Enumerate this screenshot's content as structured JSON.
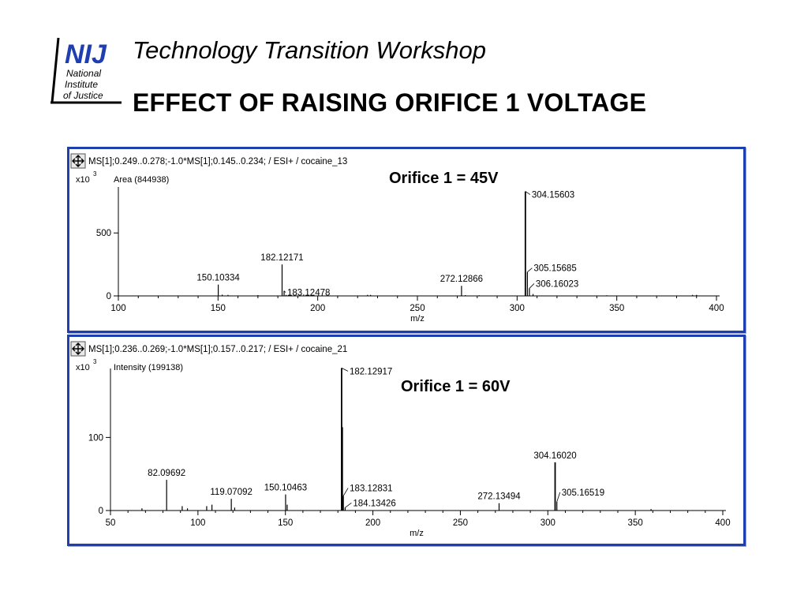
{
  "header": {
    "logo_text": "NIJ",
    "logo_subtitle": [
      "National",
      "Institute",
      "of Justice"
    ],
    "workshop_title": "Technology Transition Workshop",
    "slide_title": "EFFECT OF RAISING ORIFICE 1 VOLTAGE"
  },
  "colors": {
    "panel_border": "#1f3fb0",
    "logo_blue": "#1f3fb0"
  },
  "chart_data": [
    {
      "type": "bar",
      "header_line": "MS[1];0.249..0.278;-1.0*MS[1];0.145..0.234; / ESI+ / cocaine_13",
      "multiplier_label": "x10",
      "multiplier_exp": "3",
      "measure_label": "Area (844938)",
      "annotation": "Orifice 1 = 45V",
      "xlabel": "m/z",
      "xlim": [
        100,
        400
      ],
      "ylim": [
        0,
        840
      ],
      "xticks": [
        100,
        150,
        200,
        250,
        300,
        350,
        400
      ],
      "yticks": [
        0,
        500
      ],
      "peaks": [
        {
          "x": 150.10334,
          "y": 90,
          "label": "150.10334"
        },
        {
          "x": 152.1,
          "y": 10,
          "label": ""
        },
        {
          "x": 155.0,
          "y": 8,
          "label": ""
        },
        {
          "x": 182.12171,
          "y": 250,
          "label": "182.12171"
        },
        {
          "x": 183.12478,
          "y": 40,
          "label": "183.12478"
        },
        {
          "x": 184.1,
          "y": 8,
          "label": ""
        },
        {
          "x": 170.0,
          "y": 6,
          "label": ""
        },
        {
          "x": 225.0,
          "y": 8,
          "label": ""
        },
        {
          "x": 226.5,
          "y": 8,
          "label": ""
        },
        {
          "x": 272.12866,
          "y": 80,
          "label": "272.12866"
        },
        {
          "x": 274.0,
          "y": 6,
          "label": ""
        },
        {
          "x": 281.0,
          "y": 5,
          "label": ""
        },
        {
          "x": 304.15603,
          "y": 830,
          "label": "304.15603"
        },
        {
          "x": 305.15685,
          "y": 190,
          "label": "305.15685"
        },
        {
          "x": 306.16023,
          "y": 60,
          "label": "306.16023"
        },
        {
          "x": 308.0,
          "y": 15,
          "label": ""
        },
        {
          "x": 345.0,
          "y": 5,
          "label": ""
        },
        {
          "x": 388.0,
          "y": 8,
          "label": ""
        },
        {
          "x": 390.0,
          "y": 8,
          "label": ""
        }
      ]
    },
    {
      "type": "bar",
      "header_line": "MS[1];0.236..0.269;-1.0*MS[1];0.157..0.217; / ESI+ / cocaine_21",
      "multiplier_label": "x10",
      "multiplier_exp": "3",
      "measure_label": "Intensity (199138)",
      "annotation": "Orifice 1 = 60V",
      "xlabel": "m/z",
      "xlim": [
        50,
        400
      ],
      "ylim": [
        0,
        190
      ],
      "xticks": [
        50,
        100,
        150,
        200,
        250,
        300,
        350,
        400
      ],
      "yticks": [
        0,
        100
      ],
      "peaks": [
        {
          "x": 68.0,
          "y": 3,
          "label": ""
        },
        {
          "x": 82.09692,
          "y": 42,
          "label": "82.09692"
        },
        {
          "x": 91.0,
          "y": 6,
          "label": ""
        },
        {
          "x": 94.0,
          "y": 3,
          "label": ""
        },
        {
          "x": 105.0,
          "y": 6,
          "label": ""
        },
        {
          "x": 108.0,
          "y": 8,
          "label": ""
        },
        {
          "x": 119.07092,
          "y": 16,
          "label": "119.07092"
        },
        {
          "x": 121.0,
          "y": 4,
          "label": ""
        },
        {
          "x": 150.10463,
          "y": 22,
          "label": "150.10463"
        },
        {
          "x": 151.0,
          "y": 8,
          "label": ""
        },
        {
          "x": 182.12917,
          "y": 195,
          "label": "182.12917"
        },
        {
          "x": 182.5,
          "y": 114,
          "label": ""
        },
        {
          "x": 183.12831,
          "y": 20,
          "label": "183.12831"
        },
        {
          "x": 184.13426,
          "y": 4,
          "label": "184.13426"
        },
        {
          "x": 272.13494,
          "y": 10,
          "label": "272.13494"
        },
        {
          "x": 304.1602,
          "y": 66,
          "label": "304.16020"
        },
        {
          "x": 305.16519,
          "y": 12,
          "label": "305.16519"
        },
        {
          "x": 359.0,
          "y": 2,
          "label": ""
        }
      ]
    }
  ]
}
